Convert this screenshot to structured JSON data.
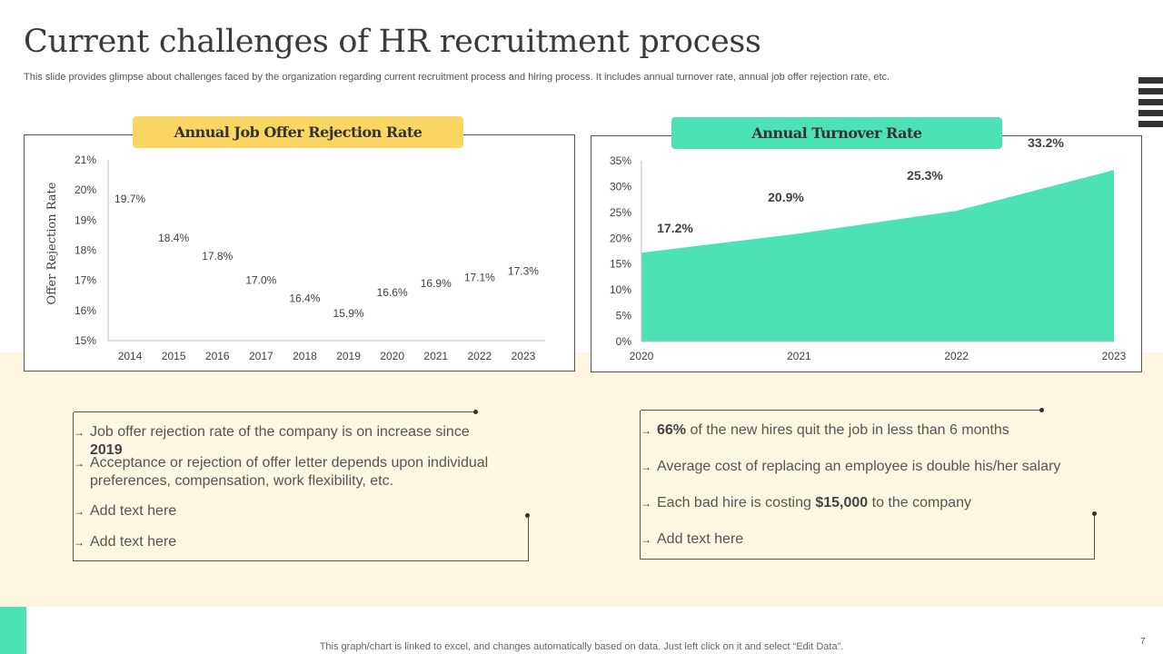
{
  "header": {
    "title": "Current challenges of HR recruitment process",
    "subtitle": "This slide provides glimpse about challenges faced by the organization regarding current recruitment process and hiring process. It includes annual turnover rate, annual job offer rejection rate, etc."
  },
  "colors": {
    "accent_yellow": "#fad663",
    "accent_green": "#4de2b6",
    "band": "#fdf6e1"
  },
  "chart_data": [
    {
      "type": "scatter",
      "title": "Annual Job Offer Rejection Rate",
      "xlabel": "",
      "ylabel": "Offer Rejection Rate",
      "categories": [
        "2014",
        "2015",
        "2016",
        "2017",
        "2018",
        "2019",
        "2020",
        "2021",
        "2022",
        "2023"
      ],
      "values": [
        19.7,
        18.4,
        17.8,
        17.0,
        16.4,
        15.9,
        16.6,
        16.9,
        17.1,
        17.3
      ],
      "labels": [
        "19.7%",
        "18.4%",
        "17.8%",
        "17.0%",
        "16.4%",
        "15.9%",
        "16.6%",
        "16.9%",
        "17.1%",
        "17.3%"
      ],
      "ylim": [
        15,
        21
      ],
      "yticks": [
        "15%",
        "16%",
        "17%",
        "18%",
        "19%",
        "20%",
        "21%"
      ]
    },
    {
      "type": "area",
      "title": "Annual Turnover Rate",
      "xlabel": "",
      "ylabel": "",
      "categories": [
        "2020",
        "2021",
        "2022",
        "2023"
      ],
      "values": [
        17.2,
        20.9,
        25.3,
        33.2
      ],
      "labels": [
        "17.2%",
        "20.9%",
        "25.3%",
        "33.2%"
      ],
      "ylim": [
        0,
        35
      ],
      "yticks": [
        "0%",
        "5%",
        "10%",
        "15%",
        "20%",
        "25%",
        "30%",
        "35%"
      ]
    }
  ],
  "left_box": {
    "items": [
      {
        "text": "Job offer rejection rate of the company is on increase since ",
        "bold": "2019",
        "after": ""
      },
      {
        "text": "Acceptance or rejection of offer letter depends upon individual preferences, compensation, work flexibility, etc.",
        "bold": "",
        "after": ""
      },
      {
        "text": "Add text here",
        "bold": "",
        "after": ""
      },
      {
        "text": "Add text here",
        "bold": "",
        "after": ""
      }
    ]
  },
  "right_box": {
    "items": [
      {
        "text": "",
        "bold": "66%",
        "after": " of the new hires quit the job in less than 6 months"
      },
      {
        "text": "Average cost of replacing an employee is double his/her salary",
        "bold": "",
        "after": ""
      },
      {
        "text": "Each bad hire is costing ",
        "bold": "$15,000",
        "after": " to the company"
      },
      {
        "text": "Add text here",
        "bold": "",
        "after": ""
      }
    ]
  },
  "footer": {
    "note": "This graph/chart is linked to excel,  and changes automatically based on data. Just left click on it and select “Edit Data”.",
    "page_number": "7"
  }
}
